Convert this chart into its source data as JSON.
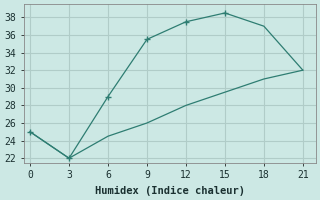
{
  "xlabel": "Humidex (Indice chaleur)",
  "x_upper": [
    0,
    3,
    6,
    9,
    12,
    15,
    18,
    21
  ],
  "y_upper": [
    25,
    22,
    29,
    35.5,
    37.5,
    38.5,
    37,
    32
  ],
  "x_lower": [
    0,
    3,
    6,
    9,
    12,
    15,
    18,
    21
  ],
  "y_lower": [
    25,
    22,
    24.5,
    26,
    28,
    29.5,
    31,
    32
  ],
  "x_markers_upper": [
    0,
    3,
    6,
    9,
    12,
    15
  ],
  "y_markers_upper": [
    25,
    22,
    29,
    35.5,
    37.5,
    38.5
  ],
  "line_color": "#2e7d72",
  "bg_color": "#cce8e4",
  "grid_color": "#b0ccc8",
  "xlim": [
    -0.5,
    22
  ],
  "ylim": [
    21.5,
    39.5
  ],
  "xticks": [
    0,
    3,
    6,
    9,
    12,
    15,
    18,
    21
  ],
  "yticks": [
    22,
    24,
    26,
    28,
    30,
    32,
    34,
    36,
    38
  ],
  "xlabel_fontsize": 7.5,
  "tick_fontsize": 7
}
